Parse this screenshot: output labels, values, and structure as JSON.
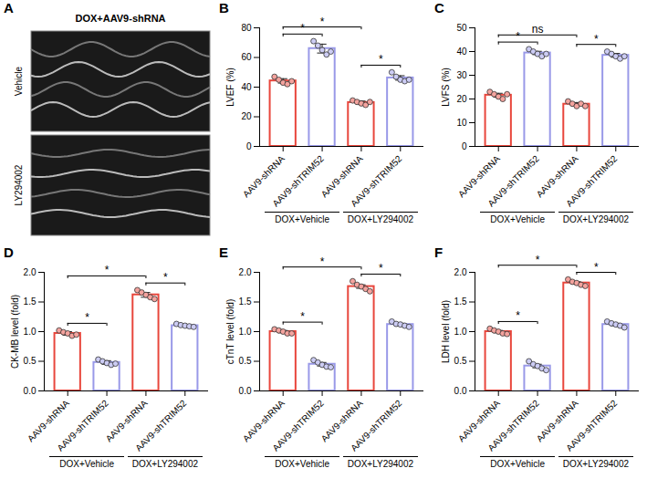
{
  "chart_data": [
    {
      "type": "image",
      "panel": "A",
      "title": "DOX+AAV9-shRNA",
      "labels": [
        "Vehicle",
        "LY294002"
      ]
    },
    {
      "type": "bar",
      "panel": "B",
      "ylabel": "LVEF (%)",
      "categories": [
        "AAV9-shRNA",
        "AAV9-shTRIM52",
        "AAV9-shRNA",
        "AAV9-shTRIM52"
      ],
      "groups": [
        {
          "name": "DOX+Vehicle",
          "span": [
            0,
            1
          ]
        },
        {
          "name": "DOX+LY294002",
          "span": [
            2,
            3
          ]
        }
      ],
      "values": [
        44.2,
        66,
        29.6,
        46.2
      ],
      "errors": [
        1.5,
        3,
        1,
        1.5
      ],
      "points": [
        [
          47,
          45,
          43,
          42,
          44
        ],
        [
          71,
          68,
          65,
          62,
          64
        ],
        [
          31,
          30,
          29,
          28,
          30
        ],
        [
          50,
          47,
          45,
          44,
          45
        ]
      ],
      "colors": [
        "#e8463c",
        "#9999e8",
        "#e8463c",
        "#9999e8"
      ],
      "ylim": [
        0,
        80
      ],
      "yticks": [
        0,
        20,
        40,
        60,
        80
      ],
      "comparisons": [
        {
          "pair": [
            0,
            1
          ],
          "label": "*"
        },
        {
          "pair": [
            0,
            2
          ],
          "label": "*"
        },
        {
          "pair": [
            2,
            3
          ],
          "label": "*"
        }
      ]
    },
    {
      "type": "bar",
      "panel": "C",
      "ylabel": "LVFS (%)",
      "categories": [
        "AAV9-shRNA",
        "AAV9-shTRIM52",
        "AAV9-shRNA",
        "AAV9-shTRIM52"
      ],
      "groups": [
        {
          "name": "DOX+Vehicle",
          "span": [
            0,
            1
          ]
        },
        {
          "name": "DOX+LY294002",
          "span": [
            2,
            3
          ]
        }
      ],
      "values": [
        21.6,
        39.4,
        17.8,
        38.4
      ],
      "errors": [
        0.8,
        0.7,
        0.7,
        0.8
      ],
      "points": [
        [
          23,
          22,
          21,
          20,
          22
        ],
        [
          41,
          40,
          39,
          38,
          39
        ],
        [
          19,
          18,
          17,
          18,
          17
        ],
        [
          40,
          39,
          38,
          37,
          38
        ]
      ],
      "colors": [
        "#e8463c",
        "#9999e8",
        "#e8463c",
        "#9999e8"
      ],
      "ylim": [
        0,
        50
      ],
      "yticks": [
        0,
        10,
        20,
        30,
        40,
        50
      ],
      "comparisons": [
        {
          "pair": [
            0,
            1
          ],
          "label": "*"
        },
        {
          "pair": [
            0,
            2
          ],
          "label": "ns"
        },
        {
          "pair": [
            2,
            3
          ],
          "label": "*"
        }
      ]
    },
    {
      "type": "bar",
      "panel": "D",
      "ylabel": "CK-MB level (fold)",
      "categories": [
        "AAV9-shRNA",
        "AAV9-shTRIM52",
        "AAV9-shRNA",
        "AAV9-shTRIM52"
      ],
      "groups": [
        {
          "name": "DOX+Vehicle",
          "span": [
            0,
            1
          ]
        },
        {
          "name": "DOX+LY294002",
          "span": [
            2,
            3
          ]
        }
      ],
      "values": [
        0.97,
        0.48,
        1.62,
        1.1
      ],
      "errors": [
        0.03,
        0.03,
        0.04,
        0.01
      ],
      "points": [
        [
          1.02,
          0.99,
          0.97,
          0.93,
          0.95
        ],
        [
          0.53,
          0.5,
          0.47,
          0.44,
          0.46
        ],
        [
          1.7,
          1.66,
          1.62,
          1.58,
          1.55
        ],
        [
          1.13,
          1.11,
          1.1,
          1.09,
          1.08
        ]
      ],
      "colors": [
        "#e8463c",
        "#9999e8",
        "#e8463c",
        "#9999e8"
      ],
      "ylim": [
        0,
        2
      ],
      "yticks": [
        {
          "value": 0,
          "label": "0.0"
        },
        {
          "value": 0.5,
          "label": "0.5"
        },
        {
          "value": 1,
          "label": "1.0"
        },
        {
          "value": 1.5,
          "label": "1.5"
        },
        {
          "value": 2,
          "label": "2.0"
        }
      ],
      "comparisons": [
        {
          "pair": [
            0,
            1
          ],
          "label": "*"
        },
        {
          "pair": [
            0,
            2
          ],
          "label": "*"
        },
        {
          "pair": [
            2,
            3
          ],
          "label": "*"
        }
      ]
    },
    {
      "type": "bar",
      "panel": "E",
      "ylabel": "cTnT level (fold)",
      "categories": [
        "AAV9-shRNA",
        "AAV9-shTRIM52",
        "AAV9-shRNA",
        "AAV9-shTRIM52"
      ],
      "groups": [
        {
          "name": "DOX+Vehicle",
          "span": [
            0,
            1
          ]
        },
        {
          "name": "DOX+LY294002",
          "span": [
            2,
            3
          ]
        }
      ],
      "values": [
        1.0,
        0.45,
        1.76,
        1.12
      ],
      "errors": [
        0.02,
        0.03,
        0.03,
        0.02
      ],
      "points": [
        [
          1.04,
          1.02,
          1.0,
          0.97,
          0.97
        ],
        [
          0.52,
          0.48,
          0.44,
          0.41,
          0.4
        ],
        [
          1.85,
          1.79,
          1.76,
          1.72,
          1.68
        ],
        [
          1.17,
          1.13,
          1.12,
          1.1,
          1.08
        ]
      ],
      "colors": [
        "#e8463c",
        "#9999e8",
        "#e8463c",
        "#9999e8"
      ],
      "ylim": [
        0,
        2
      ],
      "yticks": [
        {
          "value": 0,
          "label": "0.0"
        },
        {
          "value": 0.5,
          "label": "0.5"
        },
        {
          "value": 1,
          "label": "1.0"
        },
        {
          "value": 1.5,
          "label": "1.5"
        },
        {
          "value": 2,
          "label": "2.0"
        }
      ],
      "comparisons": [
        {
          "pair": [
            0,
            1
          ],
          "label": "*"
        },
        {
          "pair": [
            0,
            2
          ],
          "label": "*"
        },
        {
          "pair": [
            2,
            3
          ],
          "label": "*"
        }
      ]
    },
    {
      "type": "bar",
      "panel": "F",
      "ylabel": "LDH level (fold)",
      "categories": [
        "AAV9-shRNA",
        "AAV9-shTRIM52",
        "AAV9-shRNA",
        "AAV9-shTRIM52"
      ],
      "groups": [
        {
          "name": "DOX+Vehicle",
          "span": [
            0,
            1
          ]
        },
        {
          "name": "DOX+LY294002",
          "span": [
            2,
            3
          ]
        }
      ],
      "values": [
        1.0,
        0.42,
        1.82,
        1.12
      ],
      "errors": [
        0.02,
        0.03,
        0.02,
        0.02
      ],
      "points": [
        [
          1.05,
          1.02,
          1.0,
          0.97,
          0.96
        ],
        [
          0.5,
          0.45,
          0.42,
          0.38,
          0.35
        ],
        [
          1.88,
          1.84,
          1.82,
          1.79,
          1.77
        ],
        [
          1.17,
          1.14,
          1.12,
          1.1,
          1.07
        ]
      ],
      "colors": [
        "#e8463c",
        "#9999e8",
        "#e8463c",
        "#9999e8"
      ],
      "ylim": [
        0,
        2
      ],
      "yticks": [
        {
          "value": 0,
          "label": "0.0"
        },
        {
          "value": 0.5,
          "label": "0.5"
        },
        {
          "value": 1,
          "label": "1.0"
        },
        {
          "value": 1.5,
          "label": "1.5"
        },
        {
          "value": 2,
          "label": "2.0"
        }
      ],
      "comparisons": [
        {
          "pair": [
            0,
            1
          ],
          "label": "*"
        },
        {
          "pair": [
            0,
            2
          ],
          "label": "*"
        },
        {
          "pair": [
            2,
            3
          ],
          "label": "*"
        }
      ]
    }
  ]
}
